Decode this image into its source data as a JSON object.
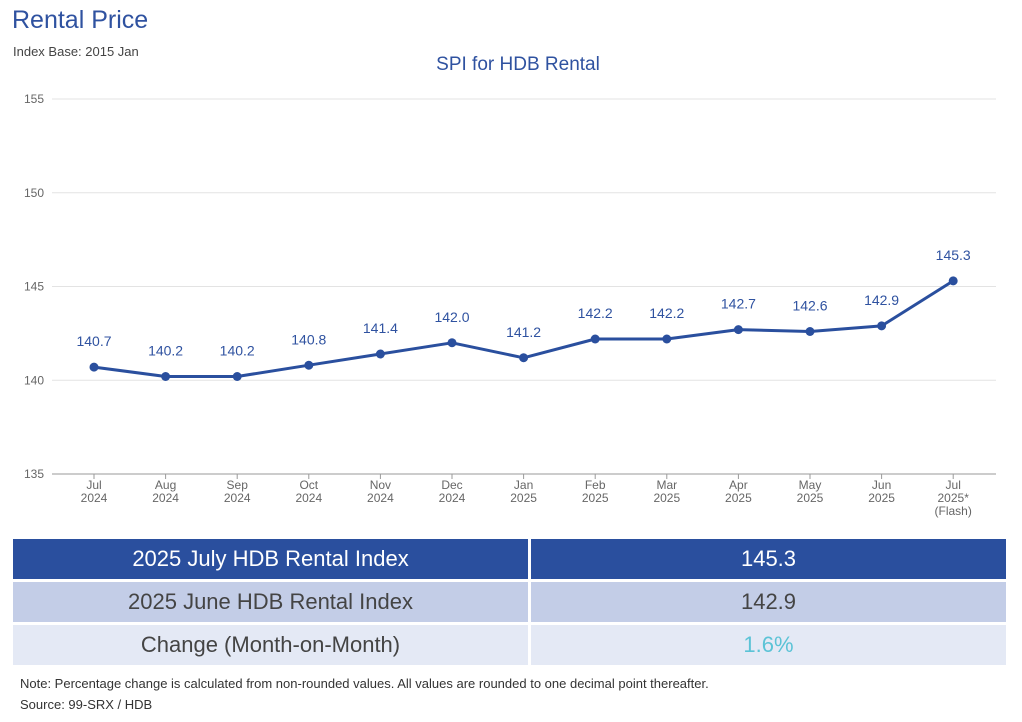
{
  "header": {
    "title": "Rental Price",
    "subtitle": "Index Base: 2015 Jan"
  },
  "chart_data": {
    "type": "line",
    "title": "SPI for HDB Rental",
    "xlabel": "",
    "ylabel": "",
    "ylim": [
      135,
      155
    ],
    "yticks": [
      135,
      140,
      145,
      150,
      155
    ],
    "grid": true,
    "categories": [
      [
        "Jul",
        "2024"
      ],
      [
        "Aug",
        "2024"
      ],
      [
        "Sep",
        "2024"
      ],
      [
        "Oct",
        "2024"
      ],
      [
        "Nov",
        "2024"
      ],
      [
        "Dec",
        "2024"
      ],
      [
        "Jan",
        "2025"
      ],
      [
        "Feb",
        "2025"
      ],
      [
        "Mar",
        "2025"
      ],
      [
        "Apr",
        "2025"
      ],
      [
        "May",
        "2025"
      ],
      [
        "Jun",
        "2025"
      ],
      [
        "Jul",
        "2025*",
        "(Flash)"
      ]
    ],
    "series": [
      {
        "values": [
          140.7,
          140.2,
          140.2,
          140.8,
          141.4,
          142.0,
          141.2,
          142.2,
          142.2,
          142.7,
          142.6,
          142.9,
          145.3
        ],
        "labels": [
          "140.7",
          "140.2",
          "140.2",
          "140.8",
          "141.4",
          "142.0",
          "141.2",
          "142.2",
          "142.2",
          "142.7",
          "142.6",
          "142.9",
          "145.3"
        ],
        "color": "#2a4f9e"
      }
    ]
  },
  "summary": {
    "rows": [
      {
        "label": "2025 July HDB Rental Index",
        "value": "145.3"
      },
      {
        "label": "2025 June HDB Rental Index",
        "value": "142.9"
      },
      {
        "label": "Change (Month-on-Month)",
        "value": "1.6%"
      }
    ]
  },
  "footer": {
    "note": "Note: Percentage change is calculated from non-rounded values.  All values are rounded to one decimal point thereafter.",
    "source": "Source: 99-SRX / HDB"
  },
  "colors": {
    "primary": "#2a4f9e",
    "light_row": "#c3cde7",
    "lighter_row": "#e4e9f5",
    "change": "#5bc3d6"
  }
}
